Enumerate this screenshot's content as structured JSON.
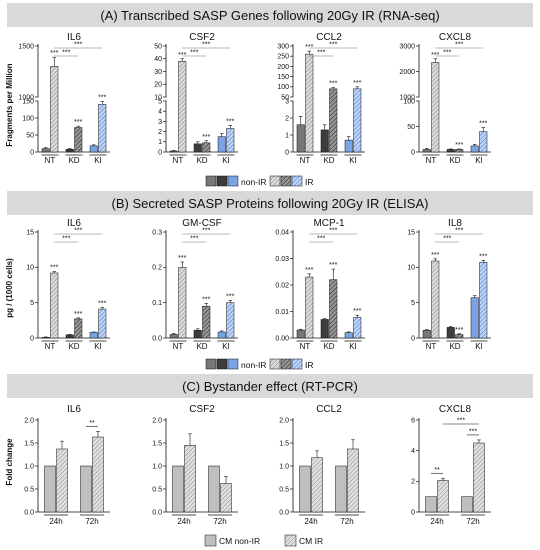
{
  "sections": [
    {
      "title": "(A) Transcribed SASP Genes following 20Gy IR (RNA-seq)",
      "ylabel": "Fragments per Million"
    },
    {
      "title": "(B) Secreted SASP Proteins following 20Gy IR (ELISA)",
      "ylabel": "pg / (1000 cells)"
    },
    {
      "title": "(C) Bystander effect (RT-PCR)",
      "ylabel": "Fold change"
    }
  ],
  "legends": {
    "ab": {
      "nonir": "non-IR",
      "ir": "IR"
    },
    "c": {
      "nonir": "CM non-IR",
      "ir": "CM IR"
    }
  },
  "colors": {
    "nt": "#777777",
    "kd": "#3c3c3c",
    "ki": "#7aa3e6",
    "bystander": "#bfbfbf",
    "band": "#d9d9d9"
  },
  "chart_data": [
    {
      "type": "bar",
      "title": "IL6",
      "section": "A",
      "categories": [
        "NT",
        "KD",
        "KI"
      ],
      "series": [
        {
          "name": "non-IR",
          "values": [
            10,
            8,
            18
          ]
        },
        {
          "name": "IR",
          "values": [
            1300,
            72,
            140
          ]
        }
      ],
      "errors": [
        [
          3,
          2,
          3
        ],
        [
          90,
          4,
          8
        ]
      ],
      "axis_break": {
        "at": 150,
        "upper": [
          1000,
          1500
        ],
        "low_ticks": [
          0,
          50,
          100,
          150
        ],
        "high_ticks": [
          1000,
          1500
        ]
      },
      "ticks": [
        "0",
        "50",
        "100",
        "150",
        "1000",
        "1500"
      ]
    },
    {
      "type": "bar",
      "title": "CSF2",
      "section": "A",
      "categories": [
        "NT",
        "KD",
        "KI"
      ],
      "series": [
        {
          "name": "non-IR",
          "values": [
            0.1,
            0.8,
            1.5
          ]
        },
        {
          "name": "IR",
          "values": [
            38,
            0.9,
            2.3
          ]
        }
      ],
      "errors": [
        [
          0.05,
          0.2,
          0.3
        ],
        [
          2,
          0.2,
          0.3
        ]
      ],
      "axis_break": {
        "at": 5,
        "upper": [
          10,
          50
        ],
        "low_ticks": [
          0,
          1,
          2,
          3,
          4,
          5
        ],
        "high_ticks": [
          10,
          20,
          30,
          40,
          50
        ]
      },
      "ticks": [
        "0",
        "1",
        "2",
        "3",
        "4",
        "5",
        "10",
        "20",
        "30",
        "40",
        "50"
      ]
    },
    {
      "type": "bar",
      "title": "CCL2",
      "section": "A",
      "categories": [
        "NT",
        "KD",
        "KI"
      ],
      "series": [
        {
          "name": "non-IR",
          "values": [
            1.6,
            1.3,
            0.7
          ]
        },
        {
          "name": "IR",
          "values": [
            260,
            90,
            90
          ]
        }
      ],
      "errors": [
        [
          0.5,
          0.3,
          0.2
        ],
        [
          15,
          6,
          10
        ]
      ],
      "axis_break": {
        "at": 3,
        "upper": [
          50,
          300
        ],
        "low_ticks": [
          0,
          1,
          2,
          3
        ],
        "high_ticks": [
          50,
          100,
          150,
          200,
          250,
          300
        ]
      },
      "ticks": [
        "0",
        "1",
        "2",
        "3",
        "50",
        "100",
        "150",
        "200",
        "250",
        "300"
      ]
    },
    {
      "type": "bar",
      "title": "CXCL8",
      "section": "A",
      "categories": [
        "NT",
        "KD",
        "KI"
      ],
      "series": [
        {
          "name": "non-IR",
          "values": [
            5,
            5,
            12
          ]
        },
        {
          "name": "IR",
          "values": [
            2350,
            5,
            40
          ]
        }
      ],
      "errors": [
        [
          2,
          1,
          3
        ],
        [
          150,
          1,
          8
        ]
      ],
      "axis_break": {
        "at": 100,
        "upper": [
          1000,
          3000
        ],
        "low_ticks": [
          0,
          50,
          100
        ],
        "high_ticks": [
          1000,
          2000,
          3000
        ]
      },
      "ticks": [
        "0",
        "50",
        "100",
        "1000",
        "2000",
        "3000"
      ]
    },
    {
      "type": "bar",
      "title": "IL6",
      "section": "B",
      "categories": [
        "NT",
        "KD",
        "KI"
      ],
      "series": [
        {
          "name": "non-IR",
          "values": [
            0.1,
            0.45,
            0.8
          ]
        },
        {
          "name": "IR",
          "values": [
            9.2,
            2.7,
            4.1
          ]
        }
      ],
      "errors": [
        [
          0.05,
          0.05,
          0.05
        ],
        [
          0.2,
          0.15,
          0.2
        ]
      ],
      "ylim": [
        0,
        15
      ],
      "ticks": [
        "0",
        "5",
        "10",
        "15"
      ]
    },
    {
      "type": "bar",
      "title": "GM-CSF",
      "section": "B",
      "categories": [
        "NT",
        "KD",
        "KI"
      ],
      "series": [
        {
          "name": "non-IR",
          "values": [
            0.01,
            0.022,
            0.017
          ]
        },
        {
          "name": "IR",
          "values": [
            0.2,
            0.09,
            0.1
          ]
        }
      ],
      "errors": [
        [
          0.003,
          0.004,
          0.003
        ],
        [
          0.015,
          0.008,
          0.006
        ]
      ],
      "ylim": [
        0,
        0.3
      ],
      "ticks": [
        "0.0",
        "0.1",
        "0.2",
        "0.3"
      ]
    },
    {
      "type": "bar",
      "title": "MCP-1",
      "section": "B",
      "categories": [
        "NT",
        "KD",
        "KI"
      ],
      "series": [
        {
          "name": "non-IR",
          "values": [
            0.003,
            0.007,
            0.002
          ]
        },
        {
          "name": "IR",
          "values": [
            0.023,
            0.022,
            0.0078
          ]
        }
      ],
      "errors": [
        [
          0.0003,
          0.0003,
          0.0003
        ],
        [
          0.0012,
          0.004,
          0.0008
        ]
      ],
      "ylim": [
        0,
        0.04
      ],
      "ticks": [
        "0.00",
        "0.01",
        "0.02",
        "0.03",
        "0.04"
      ]
    },
    {
      "type": "bar",
      "title": "IL8",
      "section": "B",
      "categories": [
        "NT",
        "KD",
        "KI"
      ],
      "series": [
        {
          "name": "non-IR",
          "values": [
            1.1,
            1.5,
            5.7
          ]
        },
        {
          "name": "IR",
          "values": [
            10.9,
            0.5,
            10.7
          ]
        }
      ],
      "errors": [
        [
          0.1,
          0.1,
          0.3
        ],
        [
          0.3,
          0.1,
          0.3
        ]
      ],
      "ylim": [
        0,
        15
      ],
      "ticks": [
        "0",
        "5",
        "10",
        "15"
      ]
    },
    {
      "type": "bar",
      "title": "IL6",
      "section": "C",
      "categories": [
        "24h",
        "72h"
      ],
      "series": [
        {
          "name": "CM non-IR",
          "values": [
            1,
            1
          ]
        },
        {
          "name": "CM IR",
          "values": [
            1.37,
            1.63
          ]
        }
      ],
      "errors": [
        [
          0,
          0
        ],
        [
          0.17,
          0.12
        ]
      ],
      "ylim": [
        0,
        2.0
      ],
      "ticks": [
        "0.0",
        "0.5",
        "1.0",
        "1.5",
        "2.0"
      ]
    },
    {
      "type": "bar",
      "title": "CSF2",
      "section": "C",
      "categories": [
        "24h",
        "72h"
      ],
      "series": [
        {
          "name": "CM non-IR",
          "values": [
            1,
            1
          ]
        },
        {
          "name": "CM IR",
          "values": [
            1.45,
            0.62
          ]
        }
      ],
      "errors": [
        [
          0,
          0
        ],
        [
          0.25,
          0.15
        ]
      ],
      "ylim": [
        0,
        2.0
      ],
      "ticks": [
        "0.0",
        "0.5",
        "1.0",
        "1.5",
        "2.0"
      ]
    },
    {
      "type": "bar",
      "title": "CCL2",
      "section": "C",
      "categories": [
        "24h",
        "72h"
      ],
      "series": [
        {
          "name": "CM non-IR",
          "values": [
            1,
            1
          ]
        },
        {
          "name": "CM IR",
          "values": [
            1.18,
            1.37
          ]
        }
      ],
      "errors": [
        [
          0,
          0
        ],
        [
          0.15,
          0.2
        ]
      ],
      "ylim": [
        0,
        2.0
      ],
      "ticks": [
        "0.0",
        "0.5",
        "1.0",
        "1.5",
        "2.0"
      ]
    },
    {
      "type": "bar",
      "title": "CXCL8",
      "section": "C",
      "categories": [
        "24h",
        "72h"
      ],
      "series": [
        {
          "name": "CM non-IR",
          "values": [
            1,
            1
          ]
        },
        {
          "name": "CM IR",
          "values": [
            2.05,
            4.5
          ]
        }
      ],
      "errors": [
        [
          0,
          0
        ],
        [
          0.15,
          0.2
        ]
      ],
      "ylim": [
        0,
        6
      ],
      "ticks": [
        "0",
        "2",
        "4",
        "6"
      ]
    }
  ]
}
